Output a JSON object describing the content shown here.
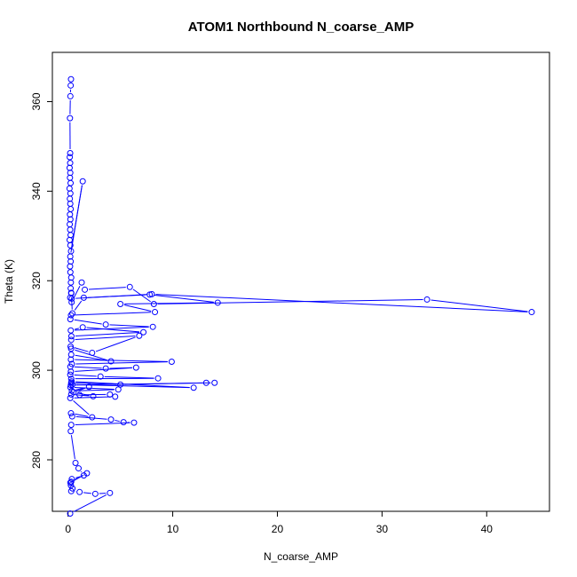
{
  "chart_data": {
    "type": "line",
    "title": "ATOM1 Northbound N_coarse_AMP",
    "xlabel": "N_coarse_AMP",
    "ylabel": "Theta (K)",
    "xlim": [
      -1.5,
      46
    ],
    "ylim": [
      268.5,
      371
    ],
    "xticks": [
      "0",
      "10",
      "20",
      "30",
      "40"
    ],
    "yticks": [
      "280",
      "300",
      "320",
      "340",
      "360"
    ],
    "grid": false,
    "series_color": "#0000ff",
    "marker": "open-circle",
    "series": [
      {
        "x": [
          0.28,
          0.25,
          0.22,
          0.18,
          0.2,
          0.16,
          0.2,
          0.15,
          0.21,
          0.18,
          0.24,
          0.14,
          0.22,
          0.17,
          0.21,
          0.25,
          0.18,
          0.22,
          0.16,
          0.2,
          0.24,
          0.15,
          0.22,
          0.28,
          1.4,
          0.21,
          0.25,
          0.19,
          0.22,
          0.3,
          0.27,
          0.25,
          0.3,
          0.2,
          0.34,
          1.3,
          1.6,
          5.9,
          8.2,
          34.3,
          44.3,
          8.0,
          0.35,
          0.31,
          0.41,
          1.5,
          7.8,
          14.3,
          5.0,
          8.3,
          0.28,
          0.22,
          3.6,
          8.1,
          0.26,
          1.4,
          7.2,
          0.32,
          0.3,
          6.8,
          2.3,
          0.24,
          0.29,
          4.1,
          0.3,
          0.27,
          9.9,
          0.36,
          0.22,
          3.6,
          6.5,
          0.27,
          0.21,
          3.1,
          8.6,
          0.3,
          0.34,
          12.0,
          0.41,
          0.3,
          5.0,
          13.2,
          14.0,
          0.27,
          0.22,
          4.8,
          0.36,
          2.0,
          0.52,
          2.4,
          0.3,
          1.1,
          4.0,
          4.5,
          0.21,
          2.3,
          0.28,
          0.39,
          4.1,
          5.3,
          6.3,
          0.3,
          0.26,
          0.71,
          1.0,
          1.5,
          0.36,
          0.3,
          1.8,
          0.22,
          0.27,
          0.42,
          0.3,
          1.1,
          2.6,
          4.0,
          0.2
        ],
        "y": [
          365,
          363.6,
          361.2,
          356.3,
          348.5,
          347.6,
          346.3,
          345.2,
          344.1,
          343.0,
          341.8,
          340.6,
          339.5,
          338.3,
          337.2,
          336.0,
          334.8,
          333.7,
          332.6,
          331.4,
          330.2,
          329.1,
          327.9,
          326.6,
          342.2,
          325.4,
          324.3,
          323.2,
          321.9,
          320.7,
          319.6,
          318.3,
          317.3,
          316.2,
          315.2,
          319.6,
          318.0,
          318.6,
          314.8,
          315.8,
          313.0,
          317.0,
          316.0,
          317.2,
          312.7,
          316.2,
          316.9,
          315.1,
          314.8,
          313.0,
          312.3,
          311.4,
          310.2,
          309.7,
          308.9,
          309.6,
          308.5,
          307.6,
          306.8,
          307.7,
          303.9,
          305.3,
          304.8,
          302.0,
          303.5,
          302.4,
          301.9,
          301.4,
          300.8,
          300.4,
          300.6,
          299.7,
          299.0,
          298.6,
          298.2,
          298.1,
          297.5,
          296.1,
          296.8,
          297.2,
          296.8,
          297.2,
          297.2,
          296.7,
          296.2,
          295.7,
          295.4,
          296.3,
          295.1,
          294.2,
          294.6,
          294.5,
          294.6,
          294.1,
          293.8,
          289.5,
          290.4,
          289.7,
          289.0,
          288.4,
          288.3,
          287.8,
          286.4,
          279.3,
          278.1,
          276.5,
          275.7,
          275.1,
          277.0,
          274.9,
          274.3,
          273.6,
          273.0,
          272.8,
          272.4,
          272.6,
          268.0
        ]
      }
    ]
  }
}
